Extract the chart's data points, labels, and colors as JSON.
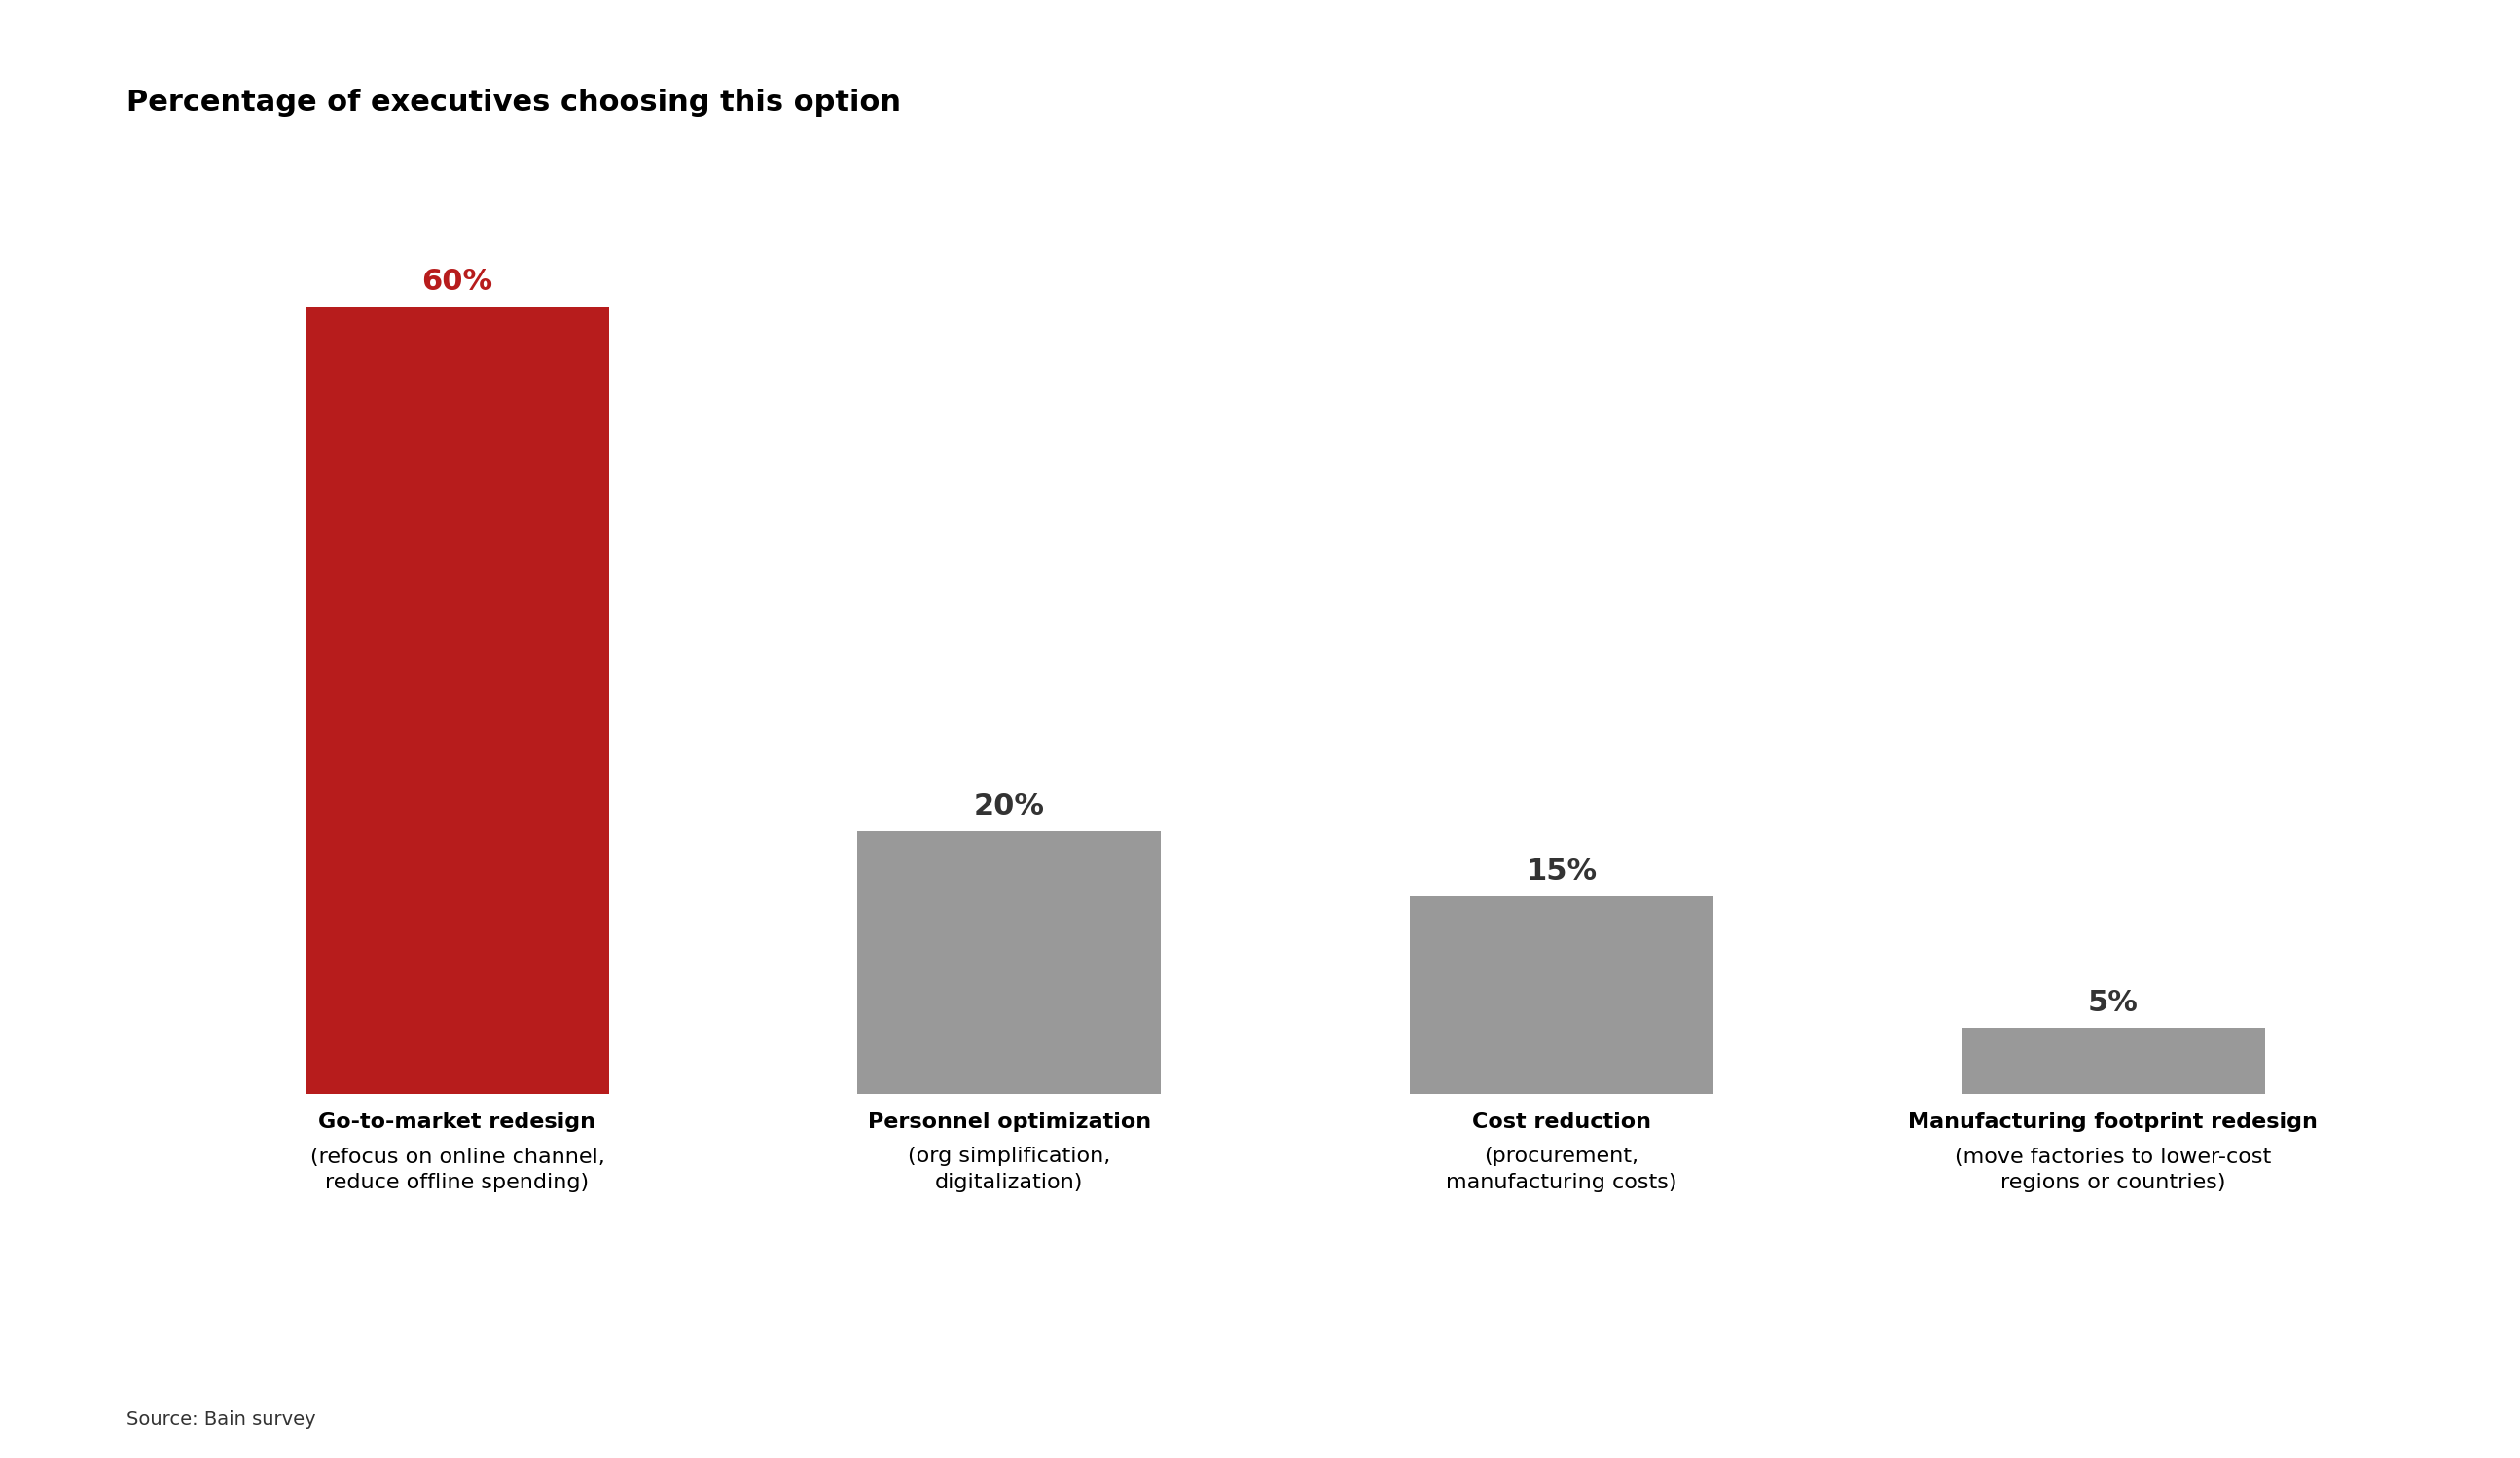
{
  "title": "Percentage of executives choosing this option",
  "categories_line1": [
    "Go-to-market redesign",
    "Personnel optimization",
    "Cost reduction",
    "Manufacturing footprint redesign"
  ],
  "categories_line2": [
    "(refocus on online channel,\nreduce offline spending)",
    "(org simplification,\ndigitalization)",
    "(procurement,\nmanufacturing costs)",
    "(move factories to lower-cost\nregions or countries)"
  ],
  "values": [
    60,
    20,
    15,
    5
  ],
  "bar_colors": [
    "#b71c1c",
    "#999999",
    "#999999",
    "#999999"
  ],
  "value_labels": [
    "60%",
    "20%",
    "15%",
    "5%"
  ],
  "value_label_colors": [
    "#b71c1c",
    "#333333",
    "#333333",
    "#333333"
  ],
  "source_text": "Source: Bain survey",
  "background_color": "#ffffff",
  "title_fontsize": 22,
  "label_fontsize": 16,
  "value_fontsize": 22,
  "source_fontsize": 14,
  "ylim": [
    0,
    70
  ],
  "bar_width": 0.55
}
